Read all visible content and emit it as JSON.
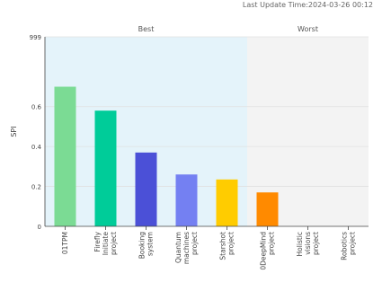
{
  "header": {
    "last_update": "Last Update Time:2024-03-26 00:12"
  },
  "chart_data": {
    "type": "bar",
    "xlabel": "",
    "ylabel": "SPI",
    "categories": [
      "01TPM",
      "Firefly Initiate project",
      "Booking system",
      "Quantum machines project",
      "Starshot project",
      "0DeepMind project",
      "Holistic visions project",
      "Robotics project"
    ],
    "values": [
      0.7,
      0.58,
      0.37,
      0.26,
      0.235,
      0.17,
      0,
      0
    ],
    "ylim": [
      0,
      0.95
    ],
    "yticks": [
      0,
      0.2,
      0.4,
      0.6
    ],
    "ytick_labels": [
      "0",
      "0.2",
      "0.4",
      "0.6"
    ],
    "top_tick_label": "999",
    "grid": true,
    "bar_colors": [
      "#7bdb94",
      "#00cc99",
      "#4b50d7",
      "#7480f2",
      "#ffcc00",
      "#ff8a00",
      "#cccccc",
      "#cccccc"
    ],
    "regions": [
      {
        "label": "Best",
        "from_index": 0,
        "to_index": 4,
        "color": "#e4f3fa"
      },
      {
        "label": "Worst",
        "from_index": 5,
        "to_index": 7,
        "color": "#f3f3f3"
      }
    ]
  }
}
